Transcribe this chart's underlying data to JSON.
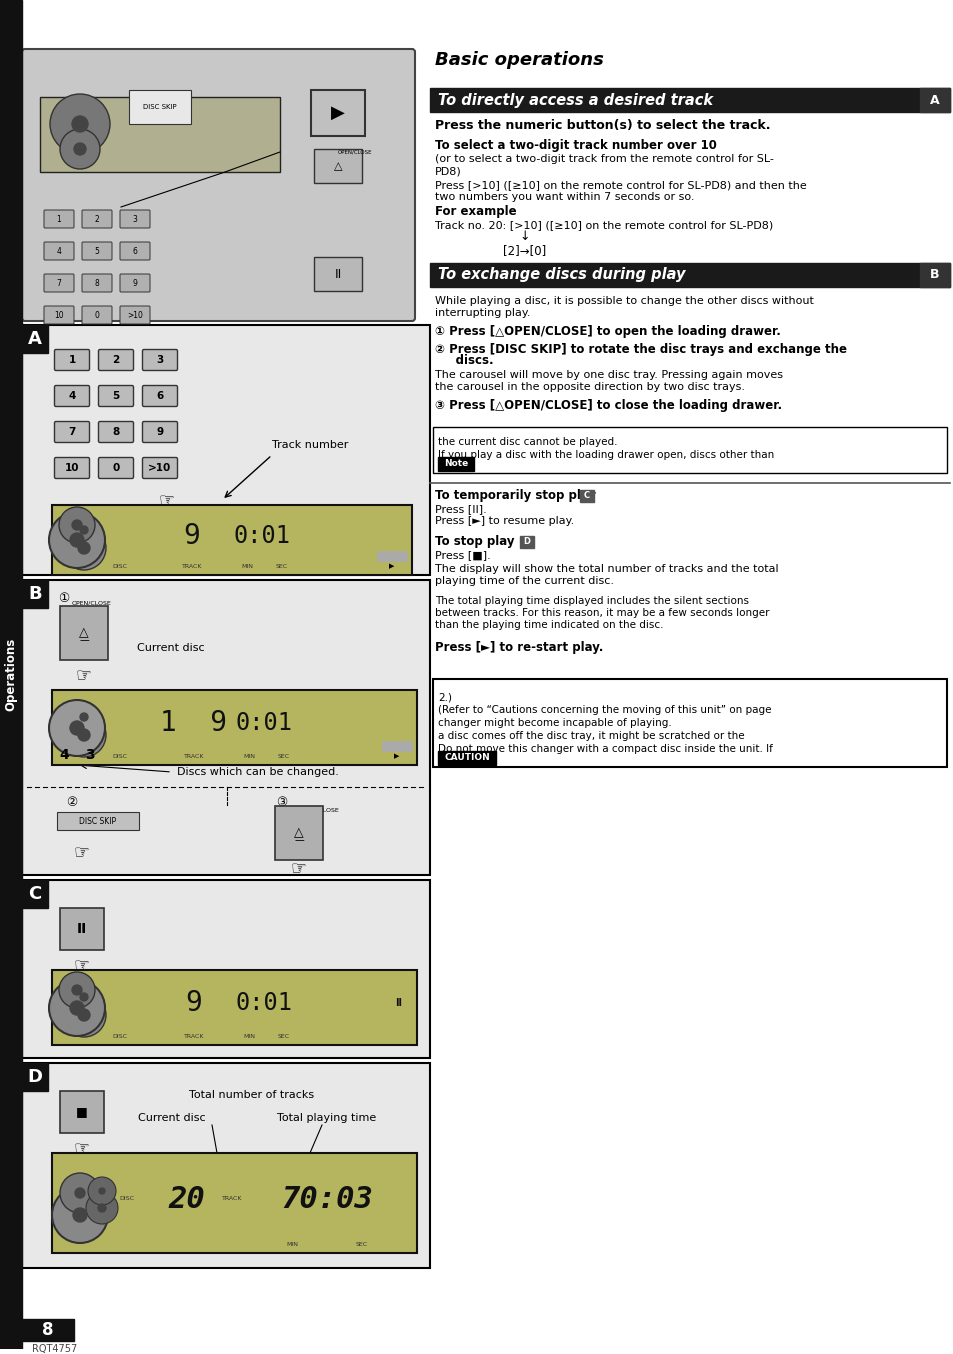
{
  "page_bg": "#ffffff",
  "sidebar_text": "Operations",
  "title": "Basic operations",
  "sec_a_title": "To directly access a desired track",
  "sec_b_title": "To exchange discs during play",
  "header_bg": "#1a1a1a",
  "header_fg": "#ffffff",
  "label_a": "A",
  "label_b": "B",
  "label_c": "C",
  "label_d": "D",
  "bold1": "Press the numeric button(s) to select the track.",
  "sub1": "To select a two-digit track number over 10",
  "sub1b": "(or to select a two-digit track from the remote control for SL-",
  "sub1c": "PD8)",
  "sub2": "Press [>10] ([≥10] on the remote control for SL-PD8) and then the",
  "sub2b": "two numbers you want within 7 seconds or so.",
  "sub3": "For example",
  "sub4": "Track no. 20: [>10] ([≥10] on the remote control for SL-PD8)",
  "arrow": "↓",
  "example": "[2]→[0]",
  "sec_b_1": "While playing a disc, it is possible to change the other discs without",
  "sec_b_1b": "interrupting play.",
  "step1": "① Press [△OPEN/CLOSE] to open the loading drawer.",
  "step2a": "② Press [DISC SKIP] to rotate the disc trays and exchange the",
  "step2b": "     discs.",
  "step2c": "The carousel will move by one disc tray. Pressing again moves",
  "step2d": "the carousel in the opposite direction by two disc trays.",
  "step3": "③ Press [△OPEN/CLOSE] to close the loading drawer.",
  "note_hdr": "Note",
  "note1": "If you play a disc with the loading drawer open, discs other than",
  "note2": "the current disc cannot be played.",
  "tmp_stop": "To temporarily stop play ",
  "tmp_stop_lbl": "C",
  "tmp1": "Press [II].",
  "tmp2": "Press [►] to resume play.",
  "stop_hdr": "To stop play ",
  "stop_lbl": "D",
  "stop1": "Press [■].",
  "stop2": "The display will show the total number of tracks and the total",
  "stop2b": "playing time of the current disc.",
  "stop3": "The total playing time displayed includes the silent sections",
  "stop3b": "between tracks. For this reason, it may be a few seconds longer",
  "stop3c": "than the playing time indicated on the disc.",
  "restart": "Press [►] to re-start play.",
  "caution_hdr": "CAUTION",
  "caut1": "Do not move this changer with a compact disc inside the unit. If",
  "caut2": "a disc comes off the disc tray, it might be scratched or the",
  "caut3": "changer might become incapable of playing.",
  "caut4": "(Refer to “Cautions concerning the moving of this unit” on page",
  "caut5": "2.)",
  "page_num": "8",
  "model": "RQT4757",
  "track_number_label": "Track number",
  "current_disc_label": "Current disc",
  "discs_changed_label": "Discs which can be changed.",
  "total_tracks_label": "Total number of tracks",
  "total_time_label": "Total playing time"
}
